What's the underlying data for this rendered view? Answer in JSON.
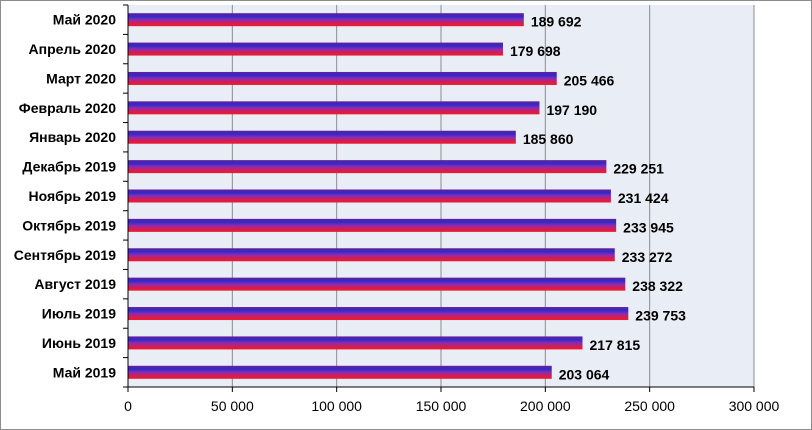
{
  "chart_data": {
    "type": "bar",
    "orientation": "horizontal",
    "title": "",
    "xlabel": "",
    "ylabel": "",
    "categories": [
      "Май 2020",
      "Апрель 2020",
      "Март 2020",
      "Февраль 2020",
      "Январь 2020",
      "Декабрь 2019",
      "Ноябрь 2019",
      "Октябрь 2019",
      "Сентябрь 2019",
      "Август 2019",
      "Июль 2019",
      "Июнь 2019",
      "Май 2019"
    ],
    "values": [
      189692,
      179698,
      205466,
      197190,
      185860,
      229251,
      231424,
      233945,
      233272,
      238322,
      239753,
      217815,
      203064
    ],
    "value_labels": [
      "189 692",
      "179 698",
      "205 466",
      "197 190",
      "185 860",
      "229 251",
      "231 424",
      "233 945",
      "233 272",
      "238 322",
      "239 753",
      "217 815",
      "203 064"
    ],
    "xlim": [
      0,
      300000
    ],
    "x_ticks": [
      0,
      50000,
      100000,
      150000,
      200000,
      250000,
      300000
    ],
    "x_tick_labels": [
      "0",
      "50 000",
      "100 000",
      "150 000",
      "200 000",
      "250 000",
      "300 000"
    ],
    "grid": true,
    "legend": "none",
    "colors": {
      "plot_background": "#e9edf6",
      "grid": "#8c8c8c",
      "bar_gradient": [
        "#6a1b9a",
        "#2c2cc7",
        "#8a2bb8",
        "#d01e55",
        "#f01a2a"
      ]
    }
  }
}
